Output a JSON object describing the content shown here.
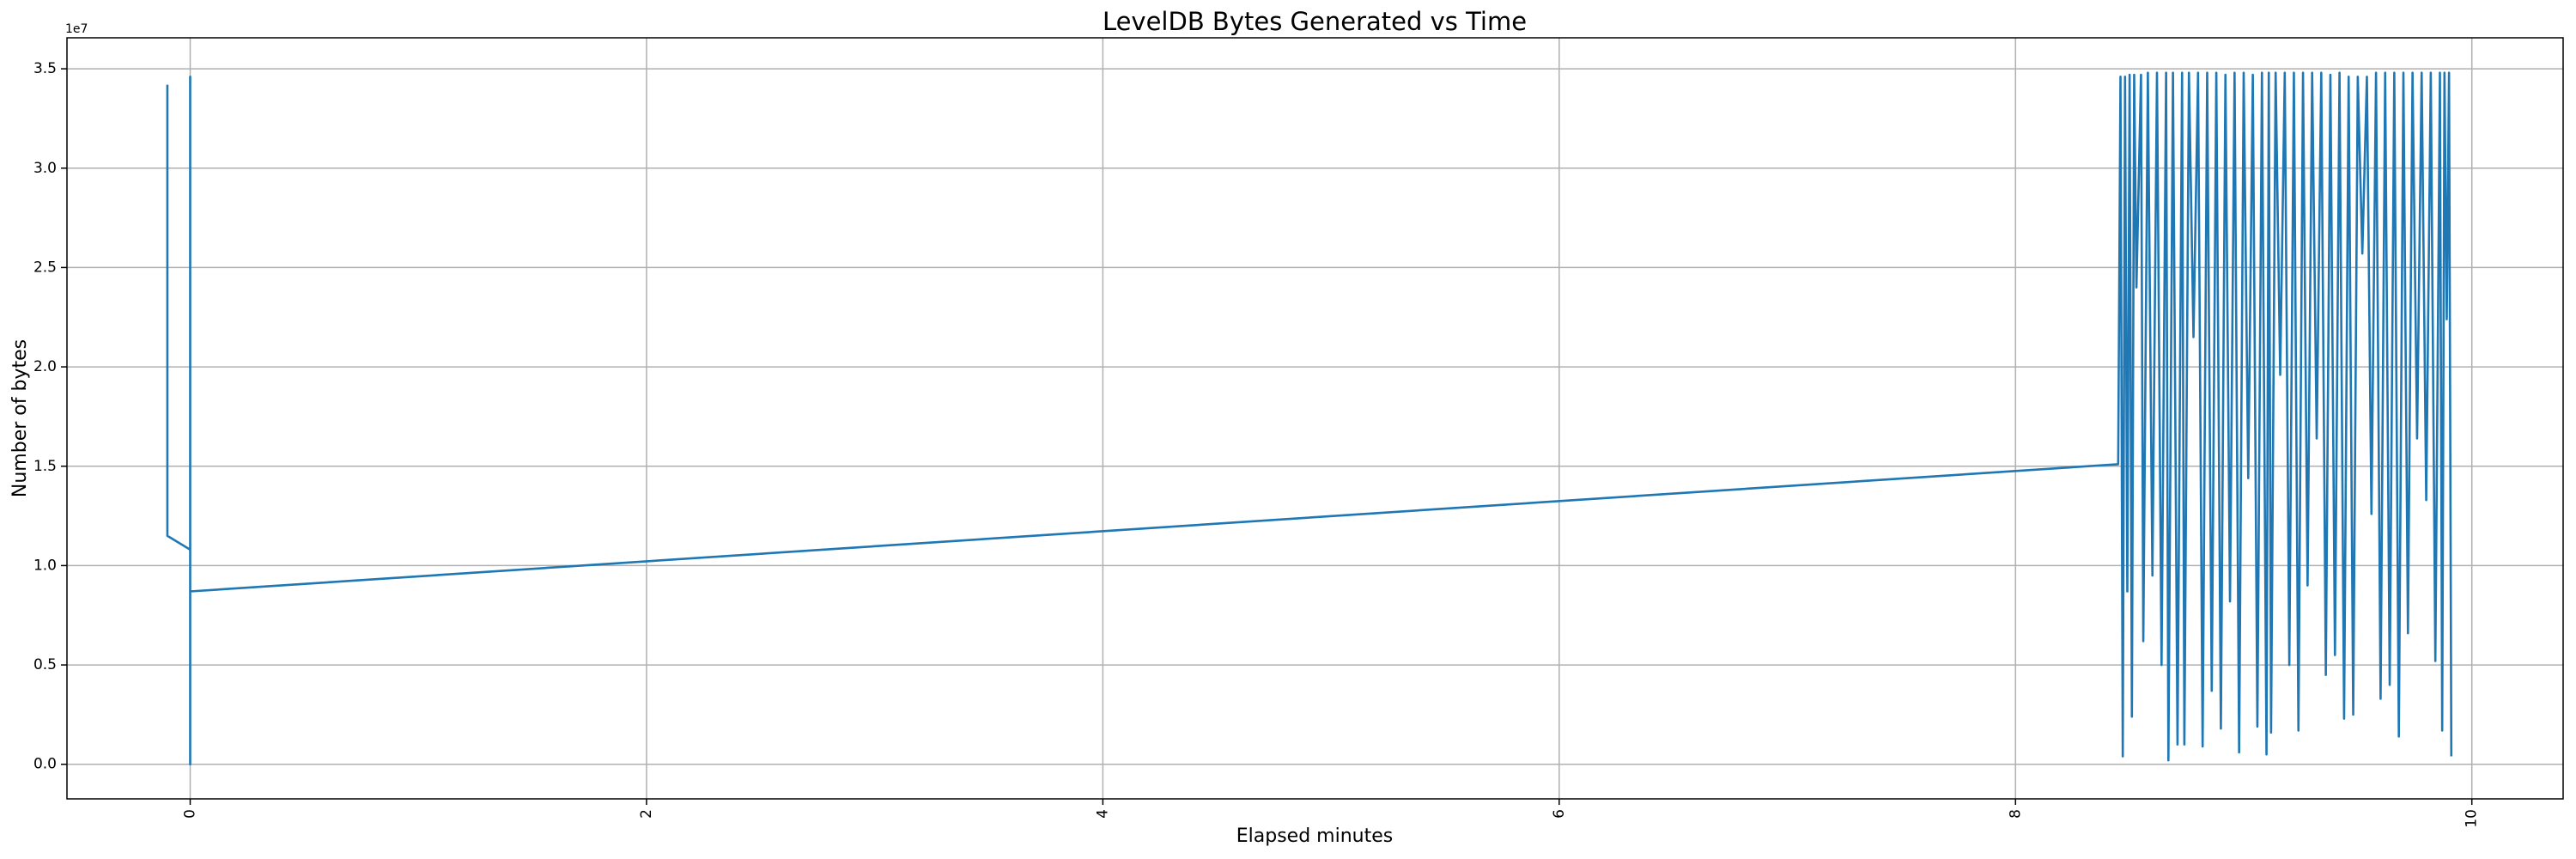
{
  "chart_data": {
    "type": "line",
    "title": "LevelDB Bytes Generated vs Time",
    "x_label": "Elapsed minutes",
    "y_label": "Number of bytes",
    "y_offset_label": "1e7",
    "x": [
      -0.1,
      -0.1,
      0,
      0,
      0,
      0,
      8.45,
      8.46,
      8.47,
      8.48,
      8.49,
      8.5,
      8.51,
      8.52,
      8.53,
      8.55,
      8.56,
      8.58,
      8.6,
      8.62,
      8.64,
      8.66,
      8.67,
      8.69,
      8.71,
      8.73,
      8.74,
      8.76,
      8.78,
      8.8,
      8.82,
      8.84,
      8.86,
      8.88,
      8.9,
      8.92,
      8.94,
      8.96,
      8.98,
      9.0,
      9.02,
      9.04,
      9.06,
      9.08,
      9.1,
      9.11,
      9.12,
      9.14,
      9.16,
      9.18,
      9.2,
      9.22,
      9.24,
      9.26,
      9.28,
      9.3,
      9.32,
      9.34,
      9.36,
      9.38,
      9.4,
      9.42,
      9.44,
      9.46,
      9.48,
      9.5,
      9.52,
      9.54,
      9.56,
      9.58,
      9.6,
      9.62,
      9.64,
      9.66,
      9.68,
      9.7,
      9.72,
      9.74,
      9.76,
      9.78,
      9.8,
      9.82,
      9.84,
      9.86,
      9.87,
      9.88,
      9.89,
      9.9,
      9.91
    ],
    "series": [
      {
        "color": "#1f77b4",
        "values": [
          34200000,
          11500000,
          10800000,
          34600000,
          0,
          8700000,
          15100000,
          34600000,
          400000,
          34600000,
          8700000,
          34700000,
          2400000,
          34700000,
          24000000,
          34700000,
          6200000,
          34800000,
          9500000,
          34800000,
          5000000,
          34800000,
          200000,
          34800000,
          1000000,
          34800000,
          1000000,
          34800000,
          21500000,
          34800000,
          900000,
          34800000,
          3700000,
          34800000,
          1800000,
          34700000,
          8200000,
          34800000,
          600000,
          34800000,
          14400000,
          34700000,
          1900000,
          34800000,
          500000,
          34800000,
          1600000,
          34800000,
          19600000,
          34800000,
          5000000,
          34800000,
          1700000,
          34800000,
          9000000,
          34800000,
          16400000,
          34800000,
          4500000,
          34700000,
          5500000,
          34800000,
          2300000,
          34600000,
          2500000,
          34600000,
          25700000,
          34600000,
          12600000,
          34800000,
          3300000,
          34800000,
          4000000,
          34800000,
          1400000,
          34800000,
          6600000,
          34800000,
          16400000,
          34800000,
          13300000,
          34800000,
          5200000,
          34800000,
          1700000,
          34800000,
          22400000,
          34800000,
          400000
        ]
      }
    ],
    "xlim": [
      -0.54,
      10.4
    ],
    "ylim": [
      -1740000,
      36560000
    ],
    "xticks": [
      0,
      2,
      4,
      6,
      8,
      10
    ],
    "yticks": [
      {
        "value": 0,
        "label": "0.0"
      },
      {
        "value": 5000000,
        "label": "0.5"
      },
      {
        "value": 10000000,
        "label": "1.0"
      },
      {
        "value": 15000000,
        "label": "1.5"
      },
      {
        "value": 20000000,
        "label": "2.0"
      },
      {
        "value": 25000000,
        "label": "2.5"
      },
      {
        "value": 30000000,
        "label": "3.0"
      },
      {
        "value": 35000000,
        "label": "3.5"
      }
    ],
    "grid": true
  }
}
